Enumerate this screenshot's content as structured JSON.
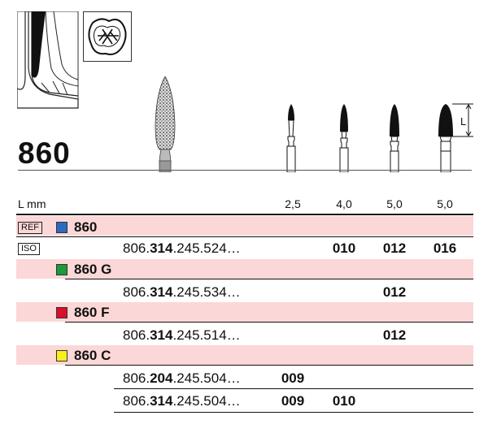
{
  "model_number": "860",
  "length_label": "L mm",
  "dimension_label": "L",
  "lengths": [
    "2,5",
    "4,0",
    "5,0",
    "5,0"
  ],
  "colors": {
    "band": "#fbd7d7",
    "blue": "#2a6bc2",
    "green": "#1a9a3a",
    "red": "#d8102a",
    "yellow": "#f7ee1a"
  },
  "rows": {
    "ref": {
      "tag": "REF",
      "color_icon": "blue-square",
      "label": "860"
    },
    "iso": {
      "tag": "ISO",
      "prefix": "806.",
      "mid": "314",
      "suffix": ".245.524…",
      "sizes": [
        "010",
        "012",
        "016"
      ]
    },
    "g": {
      "color_icon": "green-square",
      "label": "860 G"
    },
    "g_iso": {
      "prefix": "806.",
      "mid": "314",
      "suffix": ".245.534…",
      "size": "012"
    },
    "f": {
      "color_icon": "red-square",
      "label": "860 F"
    },
    "f_iso": {
      "prefix": "806.",
      "mid": "314",
      "suffix": ".245.514…",
      "size": "012"
    },
    "c": {
      "color_icon": "yellow-square",
      "label": "860 C"
    },
    "c_iso1": {
      "prefix": "806.",
      "mid": "204",
      "suffix": ".245.504…",
      "size": "009"
    },
    "c_iso2": {
      "prefix": "806.",
      "mid": "314",
      "suffix": ".245.504…",
      "sizes": [
        "009",
        "010"
      ]
    }
  }
}
